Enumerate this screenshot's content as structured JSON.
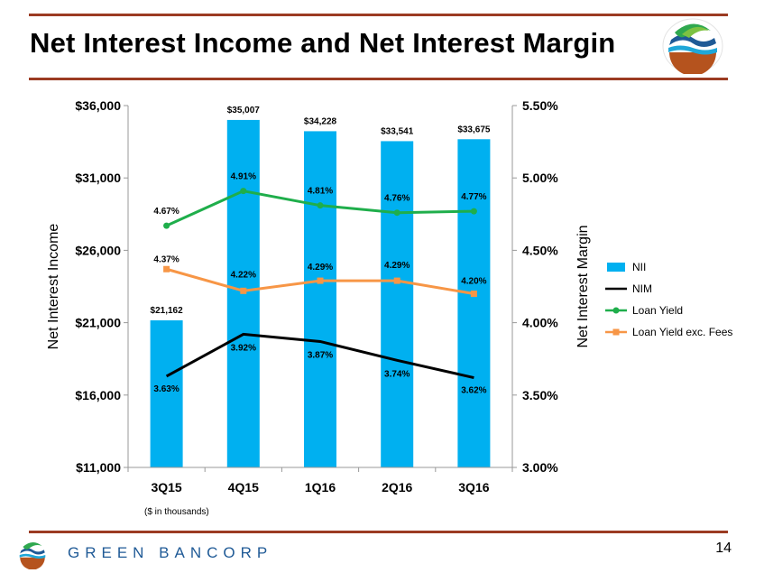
{
  "header": {
    "title": "Net Interest Income and Net Interest Margin"
  },
  "logo": {
    "icon": "green-bancorp-logo-icon"
  },
  "footer": {
    "footnote": "($ in thousands)",
    "brand": "GREEN BANCORP",
    "page_number": "14"
  },
  "colors": {
    "accent_rule": "#9b3b22",
    "nii": "#00b0f0",
    "nim": "#000000",
    "loan_yield": "#1fae4b",
    "loan_yield_exc_fees": "#f79646",
    "brand_blue": "#1f5a96"
  },
  "chart_data": {
    "type": "bar",
    "categories": [
      "3Q15",
      "4Q15",
      "1Q16",
      "2Q16",
      "3Q16"
    ],
    "y_left": {
      "label": "Net Interest Income",
      "range": [
        11000,
        36000
      ],
      "ticks": [
        "$11,000",
        "$16,000",
        "$21,000",
        "$26,000",
        "$31,000",
        "$36,000"
      ]
    },
    "y_right": {
      "label": "Net Interest Margin",
      "range": [
        3.0,
        5.5
      ],
      "ticks": [
        "3.00%",
        "3.50%",
        "4.00%",
        "4.50%",
        "5.00%",
        "5.50%"
      ]
    },
    "legend_position": "right",
    "grid": false,
    "series": [
      {
        "name": "NII",
        "type": "bar",
        "axis": "left",
        "values": [
          21162,
          35007,
          34228,
          33541,
          33675
        ],
        "labels": [
          "$21,162",
          "$35,007",
          "$34,228",
          "$33,541",
          "$33,675"
        ]
      },
      {
        "name": "NIM",
        "type": "line",
        "axis": "right",
        "values": [
          3.63,
          3.92,
          3.87,
          3.74,
          3.62
        ],
        "labels": [
          "3.63%",
          "3.92%",
          "3.87%",
          "3.74%",
          "3.62%"
        ]
      },
      {
        "name": "Loan Yield",
        "type": "line",
        "axis": "right",
        "values": [
          4.67,
          4.91,
          4.81,
          4.76,
          4.77
        ],
        "labels": [
          "4.67%",
          "4.91%",
          "4.81%",
          "4.76%",
          "4.77%"
        ]
      },
      {
        "name": "Loan Yield exc. Fees",
        "type": "line",
        "axis": "right",
        "values": [
          4.37,
          4.22,
          4.29,
          4.29,
          4.2
        ],
        "labels": [
          "4.37%",
          "4.22%",
          "4.29%",
          "4.29%",
          "4.20%"
        ]
      }
    ]
  }
}
